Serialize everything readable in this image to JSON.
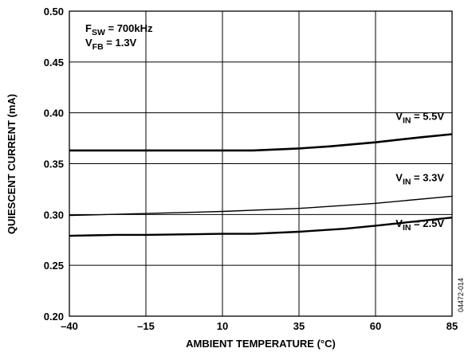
{
  "chart_data": {
    "type": "line",
    "xlabel": "AMBIENT TEMPERATURE (°C)",
    "ylabel": "QUIESCENT CURRENT (mA)",
    "xlim": [
      -40,
      85
    ],
    "ylim": [
      0.2,
      0.5
    ],
    "xticks": [
      -40,
      -15,
      10,
      35,
      60,
      85
    ],
    "yticks": [
      0.2,
      0.25,
      0.3,
      0.35,
      0.4,
      0.45,
      0.5
    ],
    "xtick_labels": [
      "–40",
      "–15",
      "10",
      "35",
      "60",
      "85"
    ],
    "ytick_labels": [
      "0.20",
      "0.25",
      "0.30",
      "0.35",
      "0.40",
      "0.45",
      "0.50"
    ],
    "grid": true,
    "annotation": [
      {
        "main": "F",
        "sub": "SW",
        "rest": " = 700kHz"
      },
      {
        "main": "V",
        "sub": "FB",
        "rest": " = 1.3V"
      }
    ],
    "figure_id": "04472-014",
    "series": [
      {
        "label": {
          "main": "V",
          "sub": "IN",
          "rest": " = 5.5V"
        },
        "stroke_width": 2.6,
        "x": [
          -40,
          -15,
          10,
          20,
          35,
          45,
          60,
          75,
          85
        ],
        "y": [
          0.363,
          0.363,
          0.363,
          0.363,
          0.365,
          0.367,
          0.371,
          0.376,
          0.379
        ]
      },
      {
        "label": {
          "main": "V",
          "sub": "IN",
          "rest": " = 3.3V"
        },
        "stroke_width": 1.4,
        "x": [
          -40,
          -15,
          10,
          35,
          60,
          85
        ],
        "y": [
          0.299,
          0.301,
          0.303,
          0.306,
          0.311,
          0.318
        ]
      },
      {
        "label": {
          "main": "V",
          "sub": "IN",
          "rest": " = 2.5V"
        },
        "stroke_width": 2.4,
        "x": [
          -40,
          -25,
          -15,
          10,
          20,
          35,
          50,
          60,
          85
        ],
        "y": [
          0.279,
          0.28,
          0.28,
          0.281,
          0.281,
          0.283,
          0.286,
          0.289,
          0.297
        ]
      }
    ]
  }
}
